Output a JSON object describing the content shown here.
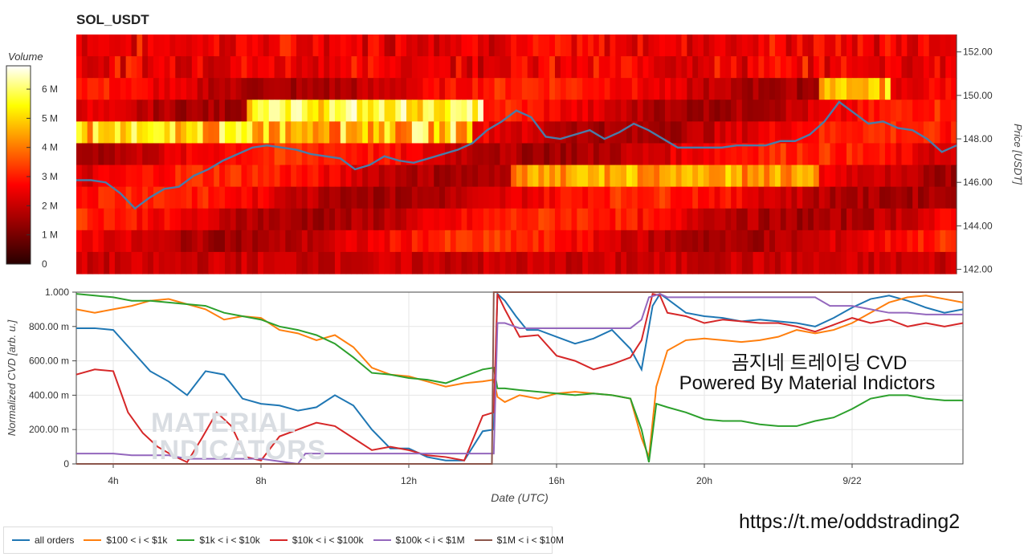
{
  "page": {
    "title": "SOL_USDT",
    "overlay_title": "곰지네 트레이딩 CVD",
    "overlay_subtitle": "Powered By Material Indictors",
    "link": "https://t.me/oddstrading2",
    "watermark_line1": "MATERIAL",
    "watermark_line2": "INDICATORS"
  },
  "chart_data": [
    {
      "type": "heatmap",
      "title": "SOL_USDT",
      "colorbar_label": "Volume",
      "colorbar_ticks": [
        "0",
        "1 M",
        "2 M",
        "3 M",
        "4 M",
        "5 M",
        "6 M"
      ],
      "colorbar_range": [
        0,
        6.8
      ],
      "ylabel": "Price [USDT]",
      "y_ticks": [
        "142.00",
        "144.00",
        "146.00",
        "148.00",
        "150.00",
        "152.00"
      ],
      "ylim": [
        141.8,
        152.8
      ],
      "x_ticks": [
        "4h",
        "8h",
        "12h",
        "16h",
        "20h",
        "9/22"
      ],
      "price_line_color": "#4a7ca8",
      "price_line": {
        "x": [
          3.0,
          3.4,
          3.8,
          4.2,
          4.6,
          5.0,
          5.4,
          5.8,
          6.2,
          6.6,
          7.0,
          7.4,
          7.8,
          8.2,
          8.6,
          9.0,
          9.4,
          9.8,
          10.2,
          10.6,
          11.0,
          11.4,
          11.8,
          12.2,
          12.6,
          13.0,
          13.4,
          13.8,
          14.2,
          14.6,
          15.0,
          15.4,
          15.8,
          16.2,
          16.6,
          17.0,
          17.4,
          17.8,
          18.2,
          18.6,
          19.0,
          19.4,
          19.8,
          20.2,
          20.6,
          21.0,
          21.4,
          21.8,
          22.2,
          22.6,
          23.0,
          23.4,
          23.8,
          24.2,
          24.6,
          25.0,
          25.4,
          25.8,
          26.2,
          26.6,
          27.0
        ],
        "y": [
          146.1,
          146.1,
          146.0,
          145.5,
          144.8,
          145.3,
          145.7,
          145.8,
          146.3,
          146.6,
          147.0,
          147.3,
          147.6,
          147.7,
          147.6,
          147.5,
          147.3,
          147.2,
          147.1,
          146.6,
          146.8,
          147.2,
          147.0,
          146.9,
          147.1,
          147.3,
          147.5,
          147.8,
          148.4,
          148.8,
          149.3,
          149.0,
          148.1,
          148.0,
          148.2,
          148.4,
          148.0,
          148.3,
          148.7,
          148.4,
          148.0,
          147.6,
          147.6,
          147.6,
          147.6,
          147.7,
          147.7,
          147.7,
          147.9,
          147.9,
          148.2,
          148.8,
          149.7,
          149.2,
          148.7,
          148.8,
          148.5,
          148.4,
          148.0,
          147.4,
          147.7
        ]
      }
    },
    {
      "type": "line",
      "xlabel": "Date (UTC)",
      "ylabel": "Normalized CVD [arb. u.]",
      "ylim": [
        0,
        1
      ],
      "y_ticks": [
        "0",
        "200.00 m",
        "400.00 m",
        "600.00 m",
        "800.00 m",
        "1.000"
      ],
      "x_ticks": [
        "4h",
        "8h",
        "12h",
        "16h",
        "20h",
        "9/22"
      ],
      "x_tick_hours": [
        4,
        8,
        12,
        16,
        20,
        24
      ],
      "xlim_hours": [
        3.0,
        27.0
      ],
      "grid": true,
      "legend_placement": "bottom",
      "series": [
        {
          "name": "all orders",
          "color": "#1f77b4",
          "x": [
            3.0,
            3.5,
            4.0,
            4.5,
            5.0,
            5.5,
            6.0,
            6.5,
            7.0,
            7.5,
            8.0,
            8.5,
            9.0,
            9.5,
            10.0,
            10.5,
            11.0,
            11.5,
            12.0,
            12.5,
            13.0,
            13.5,
            14.0,
            14.3,
            14.4,
            14.6,
            14.9,
            15.2,
            15.5,
            16.0,
            16.5,
            17.0,
            17.5,
            18.0,
            18.3,
            18.6,
            18.8,
            19.0,
            19.5,
            20.0,
            20.5,
            21.0,
            21.5,
            22.0,
            22.5,
            23.0,
            23.5,
            24.0,
            24.5,
            25.0,
            25.5,
            26.0,
            26.5,
            27.0
          ],
          "y": [
            0.79,
            0.79,
            0.78,
            0.66,
            0.54,
            0.48,
            0.4,
            0.54,
            0.52,
            0.38,
            0.35,
            0.34,
            0.31,
            0.33,
            0.4,
            0.34,
            0.2,
            0.09,
            0.09,
            0.04,
            0.02,
            0.02,
            0.19,
            0.2,
            0.99,
            0.95,
            0.86,
            0.78,
            0.78,
            0.74,
            0.7,
            0.73,
            0.78,
            0.67,
            0.55,
            0.92,
            0.99,
            0.96,
            0.88,
            0.86,
            0.85,
            0.83,
            0.84,
            0.83,
            0.82,
            0.8,
            0.85,
            0.91,
            0.96,
            0.98,
            0.95,
            0.91,
            0.88,
            0.9
          ]
        },
        {
          "name": "$100 < i < $1k",
          "color": "#ff7f0e",
          "x": [
            3.0,
            3.5,
            4.0,
            4.5,
            5.0,
            5.5,
            6.0,
            6.5,
            7.0,
            7.5,
            8.0,
            8.5,
            9.0,
            9.5,
            10.0,
            10.5,
            11.0,
            11.5,
            12.0,
            12.5,
            13.0,
            13.5,
            14.0,
            14.3,
            14.4,
            14.6,
            15.0,
            15.5,
            16.0,
            16.5,
            17.0,
            17.5,
            18.0,
            18.3,
            18.5,
            18.7,
            19.0,
            19.5,
            20.0,
            20.5,
            21.0,
            21.5,
            22.0,
            22.5,
            23.0,
            23.5,
            24.0,
            24.5,
            25.0,
            25.5,
            26.0,
            26.5,
            27.0
          ],
          "y": [
            0.9,
            0.88,
            0.9,
            0.92,
            0.95,
            0.96,
            0.93,
            0.9,
            0.84,
            0.86,
            0.85,
            0.78,
            0.76,
            0.72,
            0.75,
            0.68,
            0.56,
            0.52,
            0.51,
            0.48,
            0.45,
            0.47,
            0.48,
            0.49,
            0.39,
            0.36,
            0.4,
            0.38,
            0.41,
            0.42,
            0.41,
            0.4,
            0.38,
            0.15,
            0.04,
            0.45,
            0.66,
            0.72,
            0.73,
            0.72,
            0.71,
            0.72,
            0.74,
            0.78,
            0.76,
            0.78,
            0.82,
            0.88,
            0.94,
            0.97,
            0.98,
            0.96,
            0.94
          ]
        },
        {
          "name": "$1k < i < $10k",
          "color": "#2ca02c",
          "x": [
            3.0,
            3.5,
            4.0,
            4.5,
            5.0,
            5.5,
            6.0,
            6.5,
            7.0,
            7.5,
            8.0,
            8.5,
            9.0,
            9.5,
            10.0,
            10.5,
            11.0,
            11.5,
            12.0,
            12.5,
            13.0,
            13.5,
            14.0,
            14.3,
            14.4,
            14.6,
            15.0,
            15.5,
            16.0,
            16.5,
            17.0,
            17.5,
            18.0,
            18.3,
            18.5,
            18.7,
            19.0,
            19.5,
            20.0,
            20.5,
            21.0,
            21.5,
            22.0,
            22.5,
            23.0,
            23.5,
            24.0,
            24.5,
            25.0,
            25.5,
            26.0,
            26.5,
            27.0
          ],
          "y": [
            0.99,
            0.98,
            0.97,
            0.95,
            0.95,
            0.94,
            0.93,
            0.92,
            0.88,
            0.86,
            0.84,
            0.8,
            0.78,
            0.75,
            0.7,
            0.62,
            0.53,
            0.52,
            0.5,
            0.49,
            0.47,
            0.51,
            0.55,
            0.56,
            0.44,
            0.44,
            0.43,
            0.42,
            0.41,
            0.4,
            0.41,
            0.4,
            0.38,
            0.2,
            0.01,
            0.35,
            0.33,
            0.3,
            0.26,
            0.25,
            0.25,
            0.23,
            0.22,
            0.22,
            0.25,
            0.27,
            0.32,
            0.38,
            0.4,
            0.4,
            0.38,
            0.37,
            0.37
          ]
        },
        {
          "name": "$10k < i < $100k",
          "color": "#d62728",
          "x": [
            3.0,
            3.5,
            4.0,
            4.4,
            4.8,
            5.2,
            5.6,
            6.0,
            6.4,
            6.8,
            7.2,
            7.6,
            8.0,
            8.5,
            9.0,
            9.5,
            10.0,
            10.5,
            11.0,
            11.5,
            12.0,
            12.5,
            13.0,
            13.5,
            14.0,
            14.3,
            14.4,
            14.6,
            15.0,
            15.5,
            16.0,
            16.5,
            17.0,
            17.5,
            18.0,
            18.3,
            18.6,
            18.8,
            19.0,
            19.5,
            20.0,
            20.5,
            21.0,
            21.5,
            22.0,
            22.5,
            23.0,
            23.5,
            24.0,
            24.5,
            25.0,
            25.5,
            26.0,
            26.5,
            27.0
          ],
          "y": [
            0.52,
            0.55,
            0.54,
            0.3,
            0.18,
            0.1,
            0.05,
            0.01,
            0.15,
            0.3,
            0.22,
            0.04,
            0.02,
            0.16,
            0.2,
            0.24,
            0.22,
            0.15,
            0.08,
            0.1,
            0.08,
            0.05,
            0.04,
            0.02,
            0.28,
            0.3,
            0.99,
            0.9,
            0.74,
            0.75,
            0.63,
            0.6,
            0.55,
            0.58,
            0.62,
            0.72,
            0.99,
            0.98,
            0.88,
            0.86,
            0.82,
            0.84,
            0.83,
            0.82,
            0.82,
            0.8,
            0.77,
            0.81,
            0.85,
            0.82,
            0.84,
            0.8,
            0.82,
            0.8,
            0.82
          ]
        },
        {
          "name": "$100k < i < $1M",
          "color": "#9467bd",
          "x": [
            3.0,
            3.5,
            4.0,
            4.5,
            5.0,
            5.5,
            6.0,
            7.0,
            8.0,
            9.0,
            9.2,
            10.0,
            11.0,
            12.0,
            13.0,
            13.5,
            14.0,
            14.3,
            14.4,
            14.6,
            15.0,
            15.5,
            16.0,
            16.5,
            17.0,
            17.5,
            18.0,
            18.3,
            18.5,
            18.8,
            19.0,
            19.5,
            20.0,
            21.0,
            22.0,
            23.0,
            23.4,
            24.0,
            24.5,
            25.0,
            25.5,
            26.0,
            26.5,
            27.0
          ],
          "y": [
            0.06,
            0.06,
            0.06,
            0.05,
            0.05,
            0.05,
            0.03,
            0.03,
            0.03,
            0.0,
            0.06,
            0.06,
            0.06,
            0.06,
            0.06,
            0.06,
            0.06,
            0.06,
            0.82,
            0.82,
            0.79,
            0.79,
            0.79,
            0.79,
            0.79,
            0.79,
            0.79,
            0.84,
            0.97,
            0.99,
            0.97,
            0.97,
            0.97,
            0.97,
            0.97,
            0.97,
            0.92,
            0.92,
            0.9,
            0.88,
            0.88,
            0.87,
            0.87,
            0.87
          ]
        },
        {
          "name": "$1M < i < $10M",
          "color": "#8c564b",
          "x": [
            3.0,
            14.25,
            14.3,
            27.0
          ],
          "y": [
            0.0,
            0.0,
            1.0,
            1.0
          ]
        }
      ]
    }
  ]
}
